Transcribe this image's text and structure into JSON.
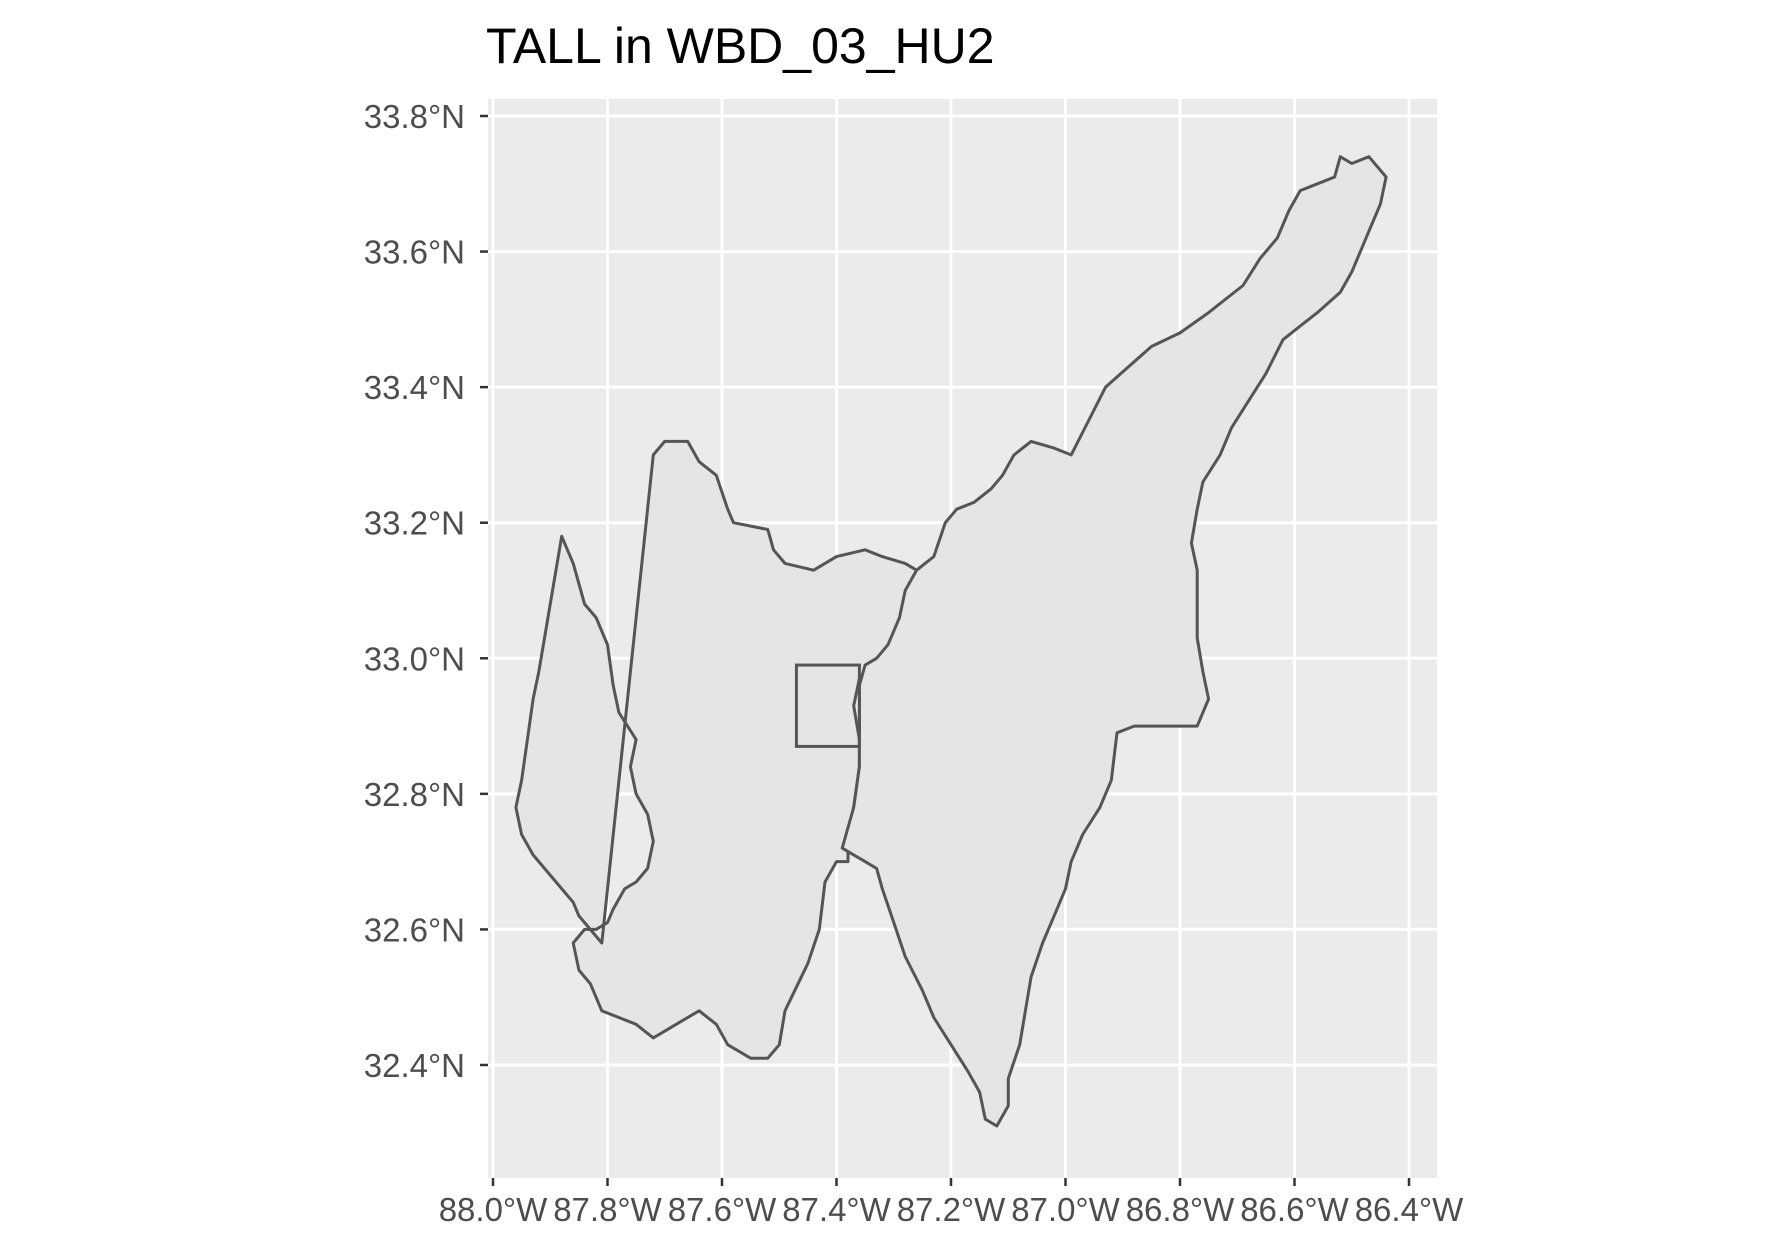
{
  "title": "TALL in WBD_03_HU2",
  "colors": {
    "panel_background": "#ebebeb",
    "grid": "#ffffff",
    "polygon_fill": "#e5e5e5",
    "polygon_outline": "#555555",
    "tick_text": "#4d4d4d"
  },
  "map": {
    "lon_range": [
      -88.0,
      -86.4
    ],
    "lat_range": [
      32.28,
      33.82
    ],
    "grid": true,
    "x_ticks": [
      {
        "value": -88.0,
        "label": "88.0°W"
      },
      {
        "value": -87.8,
        "label": "87.8°W"
      },
      {
        "value": -87.6,
        "label": "87.6°W"
      },
      {
        "value": -87.4,
        "label": "87.4°W"
      },
      {
        "value": -87.2,
        "label": "87.2°W"
      },
      {
        "value": -87.0,
        "label": "87.0°W"
      },
      {
        "value": -86.8,
        "label": "86.8°W"
      },
      {
        "value": -86.6,
        "label": "86.6°W"
      },
      {
        "value": -86.4,
        "label": "86.4°W"
      }
    ],
    "y_ticks": [
      {
        "value": 32.4,
        "label": "32.4°N"
      },
      {
        "value": 32.6,
        "label": "32.6°N"
      },
      {
        "value": 32.8,
        "label": "32.8°N"
      },
      {
        "value": 33.0,
        "label": "33.0°N"
      },
      {
        "value": 33.2,
        "label": "33.2°N"
      },
      {
        "value": 33.4,
        "label": "33.4°N"
      },
      {
        "value": 33.6,
        "label": "33.6°N"
      },
      {
        "value": 33.8,
        "label": "33.8°N"
      }
    ],
    "site_box": {
      "lon_min": -87.47,
      "lon_max": -87.36,
      "lat_min": 32.87,
      "lat_max": 32.99
    },
    "watersheds": [
      {
        "id": "western-watershed",
        "coords": [
          [
            -87.72,
            33.3
          ],
          [
            -87.7,
            33.32
          ],
          [
            -87.66,
            33.32
          ],
          [
            -87.64,
            33.29
          ],
          [
            -87.61,
            33.27
          ],
          [
            -87.59,
            33.22
          ],
          [
            -87.58,
            33.2
          ],
          [
            -87.52,
            33.19
          ],
          [
            -87.51,
            33.16
          ],
          [
            -87.49,
            33.14
          ],
          [
            -87.44,
            33.13
          ],
          [
            -87.4,
            33.15
          ],
          [
            -87.35,
            33.16
          ],
          [
            -87.32,
            33.15
          ],
          [
            -87.28,
            33.14
          ],
          [
            -87.26,
            33.13
          ],
          [
            -87.24,
            33.1
          ],
          [
            -87.25,
            33.06
          ],
          [
            -87.29,
            33.03
          ],
          [
            -87.33,
            33.0
          ],
          [
            -87.36,
            32.97
          ],
          [
            -87.37,
            32.93
          ],
          [
            -87.36,
            32.88
          ],
          [
            -87.36,
            32.84
          ],
          [
            -87.37,
            32.78
          ],
          [
            -87.38,
            32.72
          ],
          [
            -87.38,
            32.7
          ],
          [
            -87.4,
            32.7
          ],
          [
            -87.42,
            32.67
          ],
          [
            -87.43,
            32.6
          ],
          [
            -87.45,
            32.55
          ],
          [
            -87.49,
            32.48
          ],
          [
            -87.5,
            32.43
          ],
          [
            -87.52,
            32.41
          ],
          [
            -87.55,
            32.41
          ],
          [
            -87.59,
            32.43
          ],
          [
            -87.61,
            32.46
          ],
          [
            -87.64,
            32.48
          ],
          [
            -87.68,
            32.46
          ],
          [
            -87.72,
            32.44
          ],
          [
            -87.75,
            32.46
          ],
          [
            -87.81,
            32.48
          ],
          [
            -87.83,
            32.52
          ],
          [
            -87.85,
            32.54
          ],
          [
            -87.86,
            32.58
          ],
          [
            -87.84,
            32.6
          ],
          [
            -87.82,
            32.6
          ],
          [
            -87.8,
            32.61
          ],
          [
            -87.79,
            32.63
          ],
          [
            -87.77,
            32.66
          ],
          [
            -87.75,
            32.67
          ],
          [
            -87.73,
            32.69
          ],
          [
            -87.72,
            32.73
          ],
          [
            -87.73,
            32.77
          ],
          [
            -87.75,
            32.8
          ],
          [
            -87.76,
            32.84
          ],
          [
            -87.75,
            32.88
          ],
          [
            -87.78,
            32.92
          ],
          [
            -87.79,
            32.96
          ],
          [
            -87.8,
            33.02
          ],
          [
            -87.82,
            33.06
          ],
          [
            -87.84,
            33.08
          ],
          [
            -87.85,
            33.11
          ],
          [
            -87.86,
            33.14
          ],
          [
            -87.88,
            33.18
          ],
          [
            -87.92,
            32.98
          ],
          [
            -87.93,
            32.94
          ],
          [
            -87.94,
            32.88
          ],
          [
            -87.95,
            32.82
          ],
          [
            -87.96,
            32.78
          ],
          [
            -87.95,
            32.74
          ],
          [
            -87.93,
            32.71
          ],
          [
            -87.89,
            32.67
          ],
          [
            -87.86,
            32.64
          ],
          [
            -87.85,
            32.62
          ],
          [
            -87.81,
            32.58
          ]
        ]
      },
      {
        "id": "eastern-watershed",
        "coords": [
          [
            -87.23,
            33.15
          ],
          [
            -87.21,
            33.2
          ],
          [
            -87.19,
            33.22
          ],
          [
            -87.16,
            33.23
          ],
          [
            -87.13,
            33.25
          ],
          [
            -87.11,
            33.27
          ],
          [
            -87.09,
            33.3
          ],
          [
            -87.06,
            33.32
          ],
          [
            -87.02,
            33.31
          ],
          [
            -86.99,
            33.3
          ],
          [
            -86.96,
            33.35
          ],
          [
            -86.93,
            33.4
          ],
          [
            -86.89,
            33.43
          ],
          [
            -86.85,
            33.46
          ],
          [
            -86.8,
            33.48
          ],
          [
            -86.75,
            33.51
          ],
          [
            -86.72,
            33.53
          ],
          [
            -86.69,
            33.55
          ],
          [
            -86.66,
            33.59
          ],
          [
            -86.63,
            33.62
          ],
          [
            -86.61,
            33.66
          ],
          [
            -86.59,
            33.69
          ],
          [
            -86.56,
            33.7
          ],
          [
            -86.53,
            33.71
          ],
          [
            -86.52,
            33.74
          ],
          [
            -86.5,
            33.73
          ],
          [
            -86.47,
            33.74
          ],
          [
            -86.44,
            33.71
          ],
          [
            -86.45,
            33.67
          ],
          [
            -86.47,
            33.63
          ],
          [
            -86.48,
            33.61
          ],
          [
            -86.5,
            33.57
          ],
          [
            -86.52,
            33.54
          ],
          [
            -86.56,
            33.51
          ],
          [
            -86.59,
            33.49
          ],
          [
            -86.62,
            33.47
          ],
          [
            -86.65,
            33.42
          ],
          [
            -86.68,
            33.38
          ],
          [
            -86.71,
            33.34
          ],
          [
            -86.73,
            33.3
          ],
          [
            -86.76,
            33.26
          ],
          [
            -86.77,
            33.22
          ],
          [
            -86.78,
            33.17
          ],
          [
            -86.77,
            33.13
          ],
          [
            -86.77,
            33.08
          ],
          [
            -86.77,
            33.03
          ],
          [
            -86.76,
            32.98
          ],
          [
            -86.75,
            32.94
          ],
          [
            -86.77,
            32.9
          ],
          [
            -86.8,
            32.9
          ],
          [
            -86.84,
            32.9
          ],
          [
            -86.88,
            32.9
          ],
          [
            -86.91,
            32.89
          ],
          [
            -86.92,
            32.82
          ],
          [
            -86.94,
            32.78
          ],
          [
            -86.97,
            32.74
          ],
          [
            -86.99,
            32.7
          ],
          [
            -87.0,
            32.66
          ],
          [
            -87.02,
            32.62
          ],
          [
            -87.04,
            32.58
          ],
          [
            -87.06,
            32.53
          ],
          [
            -87.07,
            32.48
          ],
          [
            -87.08,
            32.43
          ],
          [
            -87.1,
            32.38
          ],
          [
            -87.1,
            32.34
          ],
          [
            -87.12,
            32.31
          ],
          [
            -87.14,
            32.32
          ],
          [
            -87.15,
            32.36
          ],
          [
            -87.17,
            32.39
          ],
          [
            -87.2,
            32.43
          ],
          [
            -87.23,
            32.47
          ],
          [
            -87.25,
            32.51
          ],
          [
            -87.28,
            32.56
          ],
          [
            -87.3,
            32.61
          ],
          [
            -87.32,
            32.66
          ],
          [
            -87.33,
            32.69
          ],
          [
            -87.35,
            32.7
          ],
          [
            -87.37,
            32.71
          ],
          [
            -87.39,
            32.72
          ],
          [
            -87.37,
            32.78
          ],
          [
            -87.36,
            32.84
          ],
          [
            -87.36,
            32.9
          ],
          [
            -87.36,
            32.96
          ],
          [
            -87.35,
            32.99
          ],
          [
            -87.33,
            33.0
          ],
          [
            -87.31,
            33.02
          ],
          [
            -87.29,
            33.06
          ],
          [
            -87.28,
            33.1
          ],
          [
            -87.26,
            33.13
          ]
        ]
      }
    ]
  }
}
